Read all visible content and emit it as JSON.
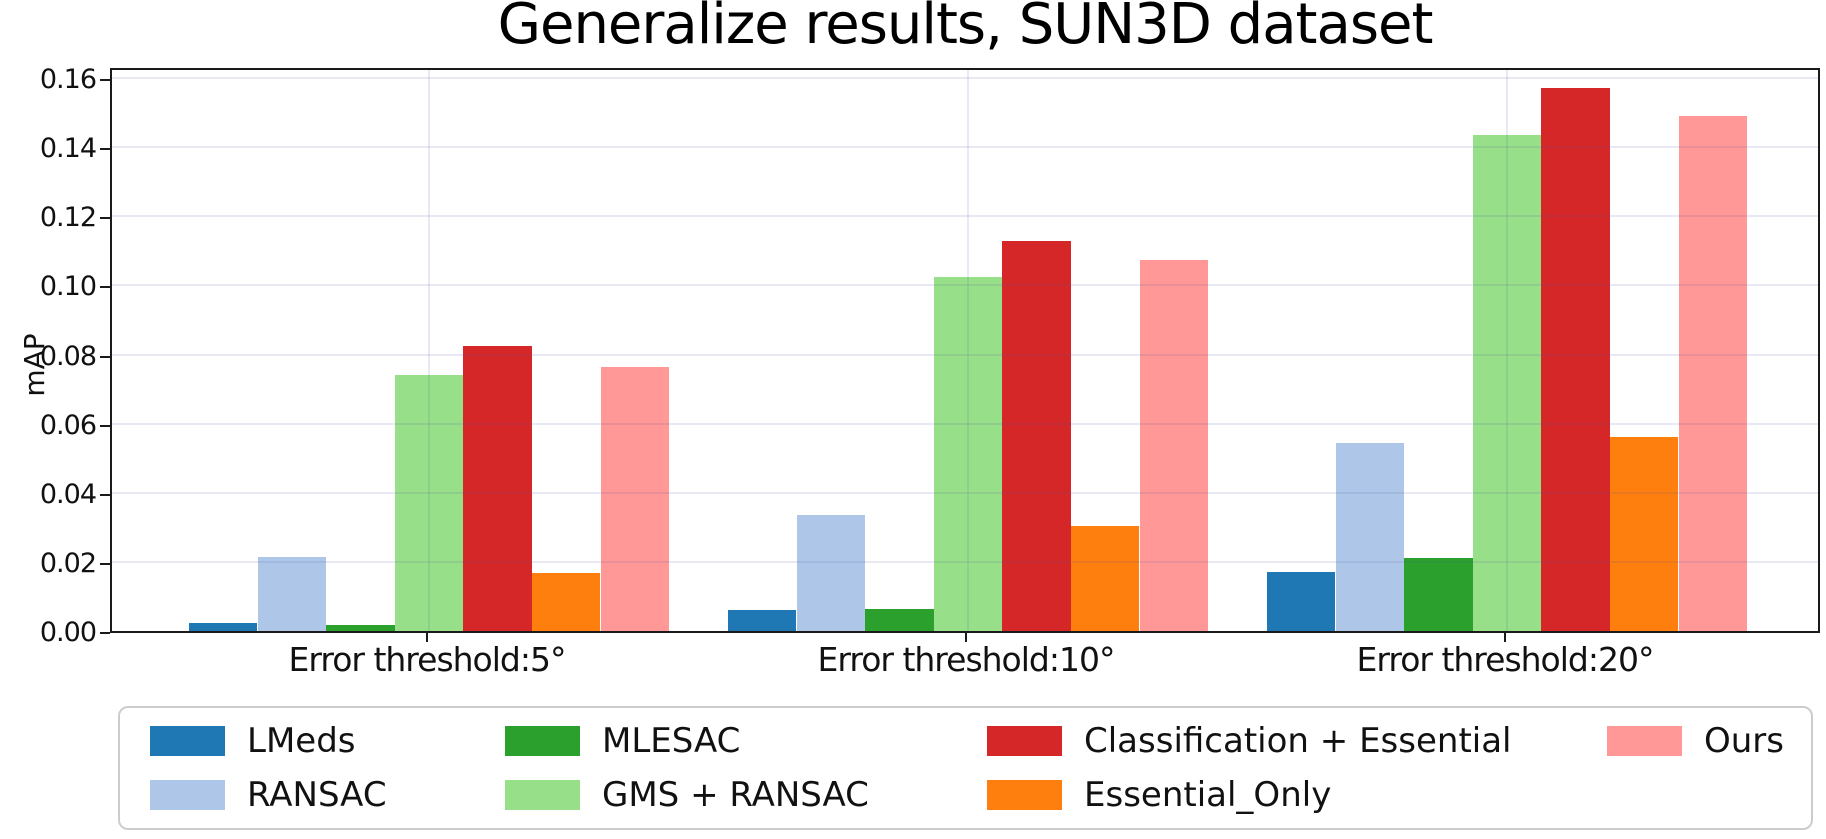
{
  "title": "Generalize results, SUN3D dataset",
  "chart_data": {
    "type": "bar",
    "title": "Generalize results, SUN3D dataset",
    "xlabel": "",
    "ylabel": "mAP",
    "categories": [
      "Error threshold:5°",
      "Error threshold:10°",
      "Error threshold:20°"
    ],
    "series": [
      {
        "name": "LMeds",
        "color": "#1f77b4",
        "values": [
          0.0023,
          0.006,
          0.0172
        ]
      },
      {
        "name": "RANSAC",
        "color": "#aec7e8",
        "values": [
          0.0215,
          0.0335,
          0.0545
        ]
      },
      {
        "name": "MLESAC",
        "color": "#2ca02c",
        "values": [
          0.0018,
          0.0064,
          0.021
        ]
      },
      {
        "name": "GMS + RANSAC",
        "color": "#98df8a",
        "values": [
          0.0742,
          0.1025,
          0.1435
        ]
      },
      {
        "name": "Classification + Essential",
        "color": "#d62728",
        "values": [
          0.0825,
          0.113,
          0.157
        ]
      },
      {
        "name": "Essential_Only",
        "color": "#ff7f0e",
        "values": [
          0.0168,
          0.0305,
          0.056
        ]
      },
      {
        "name": "Ours",
        "color": "#ff9896",
        "values": [
          0.0765,
          0.1075,
          0.149
        ]
      }
    ],
    "yticks": [
      "0.00",
      "0.02",
      "0.04",
      "0.06",
      "0.08",
      "0.10",
      "0.12",
      "0.14",
      "0.16"
    ],
    "ytick_values": [
      0.0,
      0.02,
      0.04,
      0.06,
      0.08,
      0.1,
      0.12,
      0.14,
      0.16
    ],
    "ylim": [
      0,
      0.1635
    ],
    "grid": "horizontal and vertical lavender gridlines drawn above bars",
    "legend_position": "below-chart, 4 columns, 2 rows"
  },
  "colors": {
    "background": "#ffffff",
    "grid_overlay": "rgba(88,88,160,0.13)",
    "spine": "#1a1a1a",
    "legend_border": "#cccccc",
    "text": "#111111"
  }
}
